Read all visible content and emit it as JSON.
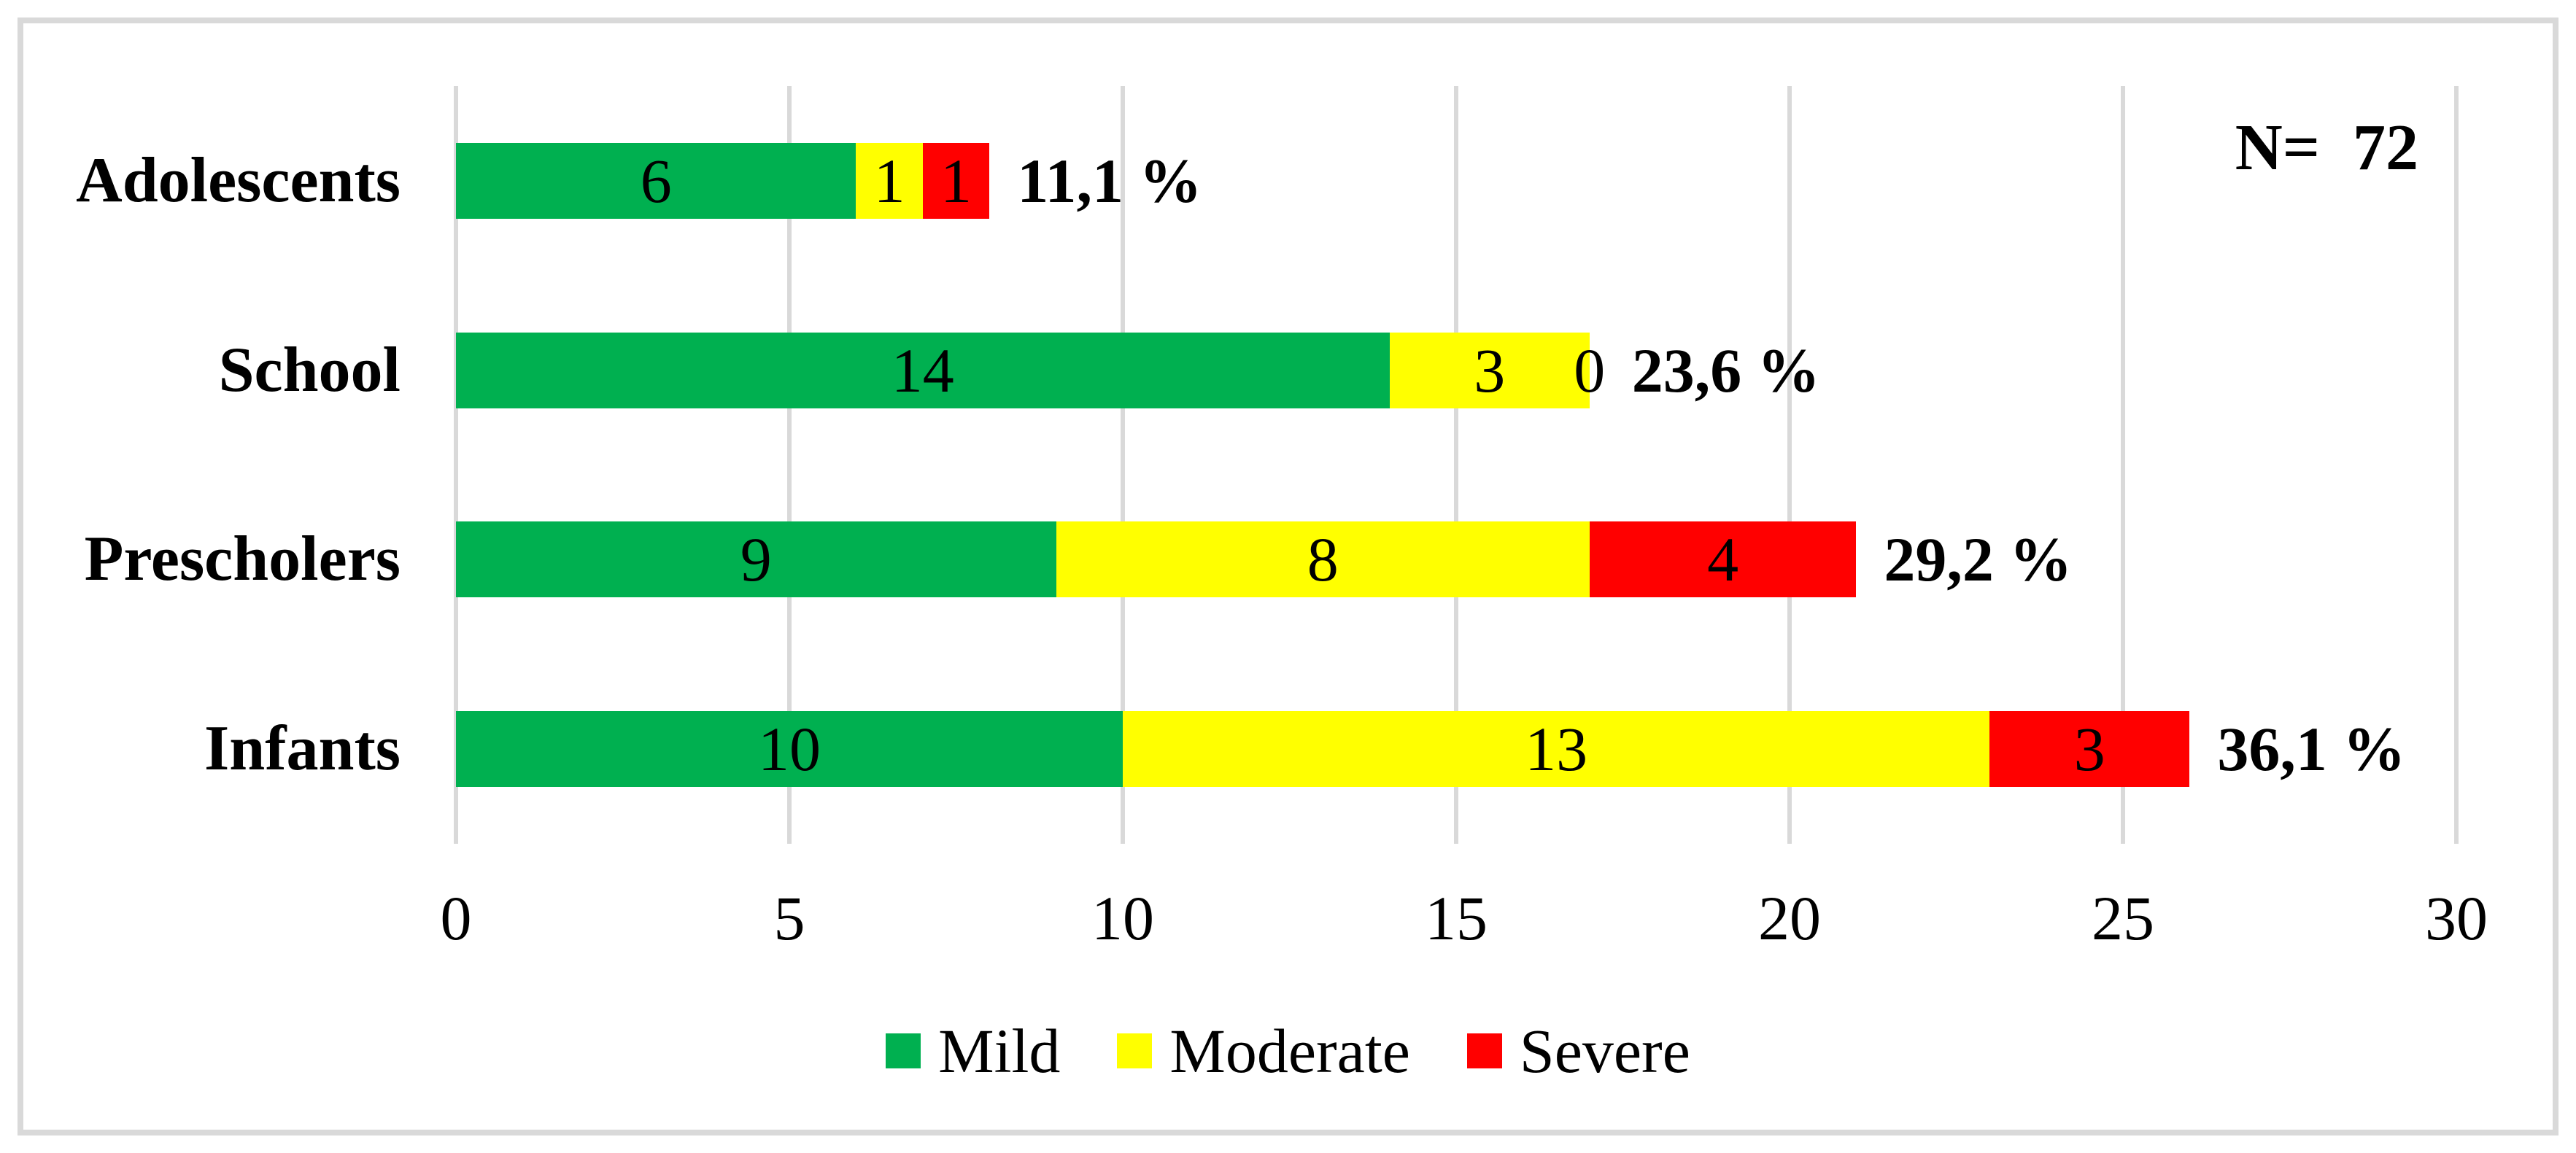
{
  "chart_data": {
    "type": "bar",
    "orientation": "horizontal",
    "stacked": true,
    "categories": [
      "Adolescents",
      "School",
      "Prescholers",
      "Infants"
    ],
    "series": [
      {
        "name": "Mild",
        "color": "#00B050",
        "values": [
          6,
          14,
          9,
          10
        ]
      },
      {
        "name": "Moderate",
        "color": "#FFFF00",
        "values": [
          1,
          3,
          8,
          13
        ]
      },
      {
        "name": "Severe",
        "color": "#FF0000",
        "values": [
          1,
          0,
          4,
          3
        ]
      }
    ],
    "bar_totals": [
      8,
      17,
      21,
      26
    ],
    "total_percent_labels": [
      "11,1 %",
      "23,6 %",
      "29,2 %",
      "36,1 %"
    ],
    "annotation": "N=  72",
    "x_ticks": [
      "0",
      "5",
      "10",
      "15",
      "20",
      "25",
      "30"
    ],
    "xlim": [
      0,
      30
    ],
    "xlabel": "",
    "ylabel": "",
    "title": "",
    "grid": "vertical",
    "legend_position": "bottom"
  },
  "colors": {
    "grid": "#D9D9D9",
    "border": "#D9D9D9",
    "text": "#000000",
    "background": "#FFFFFF"
  }
}
